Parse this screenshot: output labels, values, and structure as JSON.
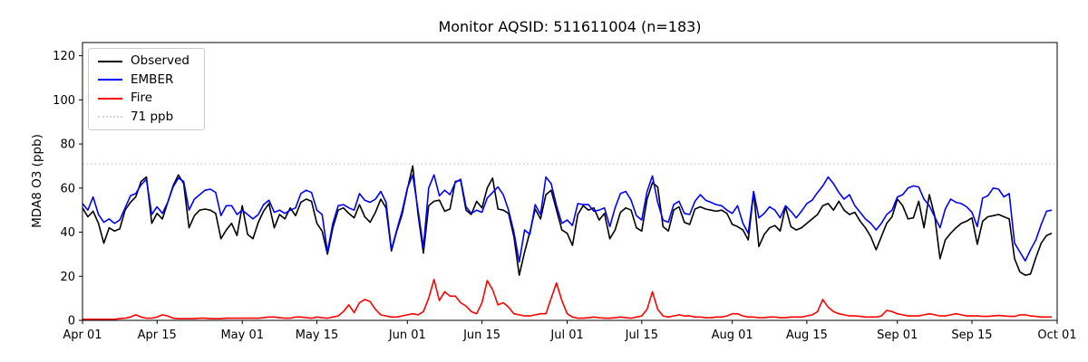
{
  "chart_data": {
    "type": "line",
    "title": "Monitor AQSID: 511611004 (n=183)",
    "xlabel": "",
    "ylabel": "MDA8 O3 (ppb)",
    "n_points": 183,
    "x_start_label": "Apr 01",
    "x_end_label": "Oct 01",
    "x_days_total": 183,
    "ylim": [
      0,
      126
    ],
    "yticks": [
      0,
      20,
      40,
      60,
      80,
      100,
      120
    ],
    "xtick_labels": [
      "Apr 01",
      "Apr 15",
      "May 01",
      "May 15",
      "Jun 01",
      "Jun 15",
      "Jul 01",
      "Jul 15",
      "Aug 01",
      "Aug 15",
      "Sep 01",
      "Sep 15",
      "Oct 01"
    ],
    "xtick_days": [
      0,
      14,
      30,
      44,
      61,
      75,
      91,
      105,
      122,
      136,
      153,
      167,
      183
    ],
    "grid": false,
    "legend_position": "upper left",
    "threshold": {
      "value": 71,
      "label": "71 ppb",
      "color": "#d3d3d3",
      "style": "dotted"
    },
    "legend": [
      {
        "label": "Observed",
        "color": "#000000",
        "style": "solid"
      },
      {
        "label": "EMBER",
        "color": "#0000ff",
        "style": "solid"
      },
      {
        "label": "Fire",
        "color": "#ff0000",
        "style": "solid"
      },
      {
        "label": "71 ppb",
        "color": "#d3d3d3",
        "style": "dotted"
      }
    ],
    "series": [
      {
        "name": "Observed",
        "color": "#000000",
        "values": [
          51,
          47,
          49.5,
          44,
          35,
          42,
          40.5,
          41.5,
          50,
          53.5,
          56,
          63,
          65,
          44,
          48.5,
          46,
          53.5,
          61,
          66,
          62,
          42,
          47.5,
          50,
          50.5,
          50,
          48.5,
          37,
          41,
          44,
          38.5,
          52,
          39,
          37,
          44.5,
          49.5,
          53,
          42,
          48,
          46,
          51,
          47.5,
          53.5,
          55,
          54,
          44,
          40.5,
          30,
          42,
          50,
          51,
          48.5,
          46.5,
          52.5,
          47,
          44.5,
          49,
          55,
          51,
          31.5,
          40.5,
          48,
          59.5,
          70,
          48,
          30.5,
          52,
          54,
          54.5,
          49.5,
          50.5,
          63,
          63.5,
          50,
          48,
          54,
          51,
          60,
          64.5,
          50.5,
          50,
          48.5,
          38,
          20.5,
          31,
          40,
          50.5,
          46,
          57,
          59,
          50,
          41,
          39.5,
          34,
          48,
          52,
          50,
          51,
          45.5,
          48.5,
          37,
          41,
          49,
          51,
          50,
          42,
          40.5,
          55,
          62.5,
          60.5,
          42.5,
          40.5,
          50,
          51.5,
          44.5,
          43.5,
          50.5,
          51.5,
          50.5,
          50,
          49.5,
          50,
          48.5,
          43.5,
          42.5,
          41,
          36.5,
          58,
          33.5,
          39,
          42,
          43,
          40.5,
          51.5,
          42.5,
          41,
          42,
          44,
          46,
          48,
          52,
          53,
          50,
          54,
          50,
          48,
          49,
          45,
          42,
          38,
          32,
          38,
          44,
          47,
          55,
          52,
          46,
          46.5,
          54,
          42,
          57,
          47.5,
          28,
          36.5,
          39.5,
          42,
          44,
          45,
          46.5,
          34.5,
          45,
          47,
          47.5,
          48,
          47,
          46,
          28,
          22,
          20.5,
          21,
          28.5,
          35,
          38.5,
          39.5
        ]
      },
      {
        "name": "EMBER",
        "color": "#0000ff",
        "values": [
          53,
          50,
          56,
          48,
          44.5,
          46,
          44,
          45.5,
          51,
          56.5,
          57.5,
          61.5,
          64,
          48,
          51.5,
          48.5,
          53.5,
          60.5,
          64.5,
          63,
          50,
          55,
          57,
          59,
          59.5,
          58,
          47.5,
          52,
          52,
          48,
          50,
          48,
          46,
          48,
          52.5,
          54.5,
          49,
          50,
          48.5,
          50,
          51,
          57.5,
          59,
          58,
          50,
          48,
          31,
          44,
          52,
          52.5,
          51,
          50,
          57.5,
          54.5,
          53.5,
          55,
          58.5,
          53.5,
          32,
          41,
          49.5,
          60,
          66,
          50,
          33,
          60,
          66,
          56.5,
          59,
          57,
          62.5,
          64,
          51.5,
          48.5,
          50,
          49,
          55.5,
          58,
          60.5,
          57,
          50,
          40,
          26.5,
          41,
          39,
          52.5,
          48,
          65,
          62,
          52,
          44,
          45.5,
          43,
          53,
          52.5,
          52.5,
          49.5,
          50,
          51,
          42.5,
          51,
          57.5,
          58.5,
          54.5,
          47.5,
          45.5,
          58.5,
          65.5,
          53.5,
          45.5,
          44.5,
          52.5,
          54,
          48.5,
          48,
          54,
          57,
          54.5,
          53.5,
          52.5,
          52,
          50,
          48.5,
          52,
          44,
          39.5,
          58.5,
          46.5,
          48.5,
          51.5,
          50,
          46.5,
          52,
          49.5,
          46.5,
          49.5,
          53,
          54.5,
          58,
          61,
          65,
          62,
          58,
          55,
          57,
          52,
          49,
          46,
          44,
          41,
          44,
          48,
          50,
          56,
          57,
          60,
          61,
          60.5,
          55,
          52,
          47,
          42,
          50.5,
          55,
          53.5,
          53,
          51.5,
          49,
          42.5,
          55.5,
          56.5,
          60,
          59.5,
          56,
          57.5,
          35,
          31,
          27,
          32,
          36.5,
          43.5,
          49.5,
          50
        ]
      },
      {
        "name": "Fire",
        "color": "#ff0000",
        "values": [
          0.5,
          0.5,
          0.5,
          0.5,
          0.5,
          0.5,
          0.5,
          0.8,
          1,
          1.5,
          2.5,
          1.5,
          1,
          1,
          1.5,
          2.5,
          2,
          1,
          0.8,
          0.8,
          0.8,
          0.8,
          1,
          1,
          0.8,
          0.8,
          0.8,
          1,
          1,
          1,
          1,
          1,
          1,
          1,
          1.2,
          1.5,
          1.5,
          1.2,
          1,
          1,
          1.5,
          1.5,
          1.2,
          1,
          1.5,
          1.2,
          1,
          1.5,
          2,
          4,
          7,
          3.5,
          8,
          9.5,
          8.5,
          5,
          2.5,
          2,
          1.5,
          1.5,
          2,
          2.5,
          3,
          2.5,
          4,
          10,
          18.5,
          9,
          13,
          11,
          11,
          8,
          6.5,
          4,
          3,
          8,
          18,
          14,
          7,
          8,
          6,
          3,
          2.5,
          2,
          2,
          2.5,
          3,
          3,
          10,
          17,
          9,
          3,
          1.5,
          1,
          1,
          1.2,
          1.5,
          1.2,
          1,
          1,
          1.2,
          1.5,
          1.2,
          1,
          1.5,
          2,
          5,
          13,
          5,
          2,
          1.5,
          2,
          2.5,
          2,
          2,
          1.5,
          1.5,
          1.2,
          1.2,
          1.5,
          1.5,
          2,
          3,
          3,
          2,
          1.5,
          1.5,
          1.2,
          1.2,
          1.5,
          1.5,
          1.2,
          1.2,
          1.5,
          1.5,
          1.5,
          2,
          2.5,
          4,
          9.5,
          6,
          4,
          3,
          2.5,
          2,
          2,
          1.8,
          1.5,
          1.5,
          1.5,
          2,
          4.5,
          4,
          3,
          2.5,
          2,
          2,
          2,
          2.5,
          3,
          2.5,
          2,
          2,
          2.5,
          3,
          2.5,
          2,
          2,
          2,
          1.8,
          1.8,
          2,
          2.2,
          2,
          1.8,
          1.8,
          2.5,
          2.5,
          2,
          1.8,
          1.5,
          1.5,
          1.5
        ]
      }
    ]
  }
}
